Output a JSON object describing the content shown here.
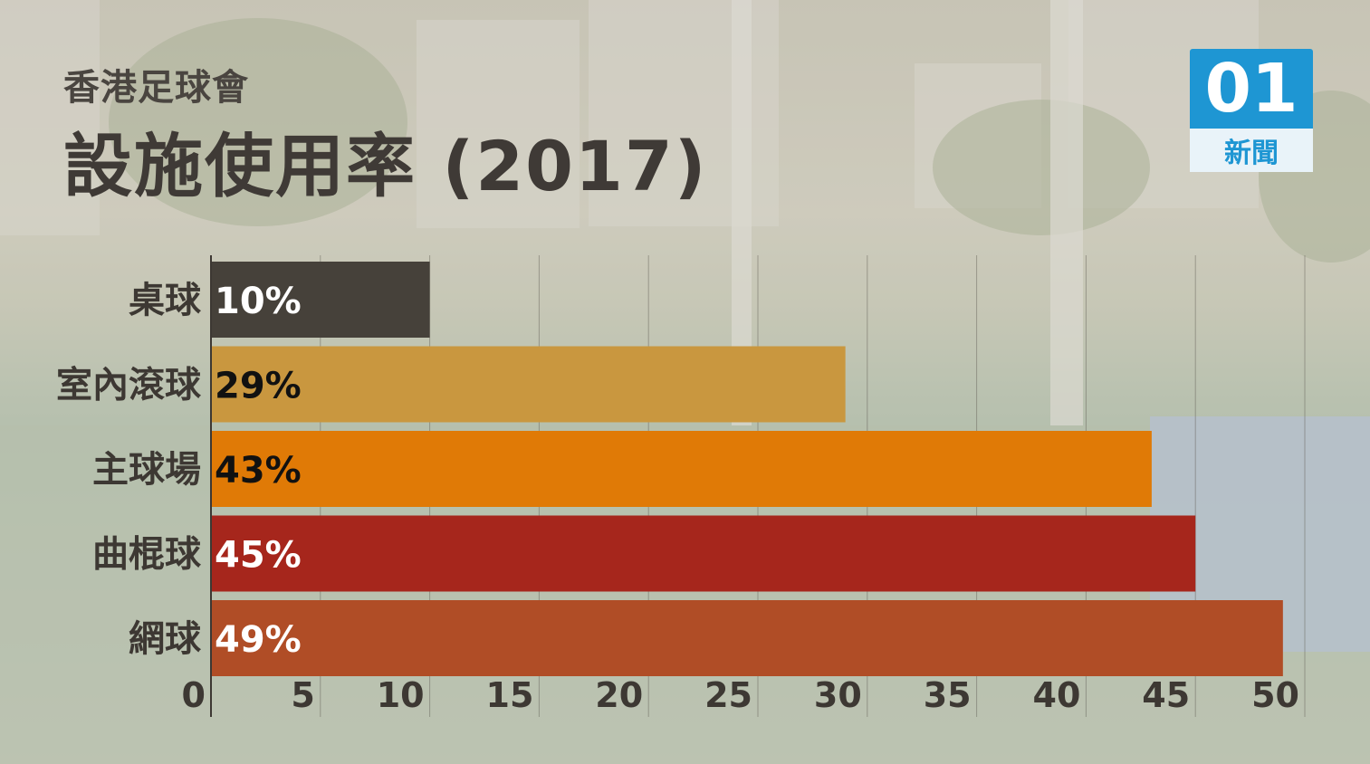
{
  "header": {
    "subtitle": "香港足球會",
    "title": "設施使用率 (2017)"
  },
  "logo": {
    "mark": "01",
    "text": "新聞",
    "color": "#1e96d3"
  },
  "chart_data": {
    "type": "bar",
    "orientation": "horizontal",
    "title": "設施使用率 (2017)",
    "subtitle": "香港足球會",
    "categories": [
      "桌球",
      "室內滾球",
      "主球場",
      "曲棍球",
      "網球"
    ],
    "values": [
      10,
      29,
      43,
      45,
      49
    ],
    "value_labels": [
      "10%",
      "29%",
      "43%",
      "45%",
      "49%"
    ],
    "colors": [
      "#46413a",
      "#c9973f",
      "#e07a06",
      "#a6261c",
      "#b04d26"
    ],
    "value_label_colors": [
      "#ffffff",
      "#111111",
      "#111111",
      "#ffffff",
      "#ffffff"
    ],
    "x_ticks": [
      0,
      5,
      10,
      15,
      20,
      25,
      30,
      35,
      40,
      45,
      50
    ],
    "xlim": [
      0,
      50
    ],
    "grid": true,
    "legend": "none"
  }
}
